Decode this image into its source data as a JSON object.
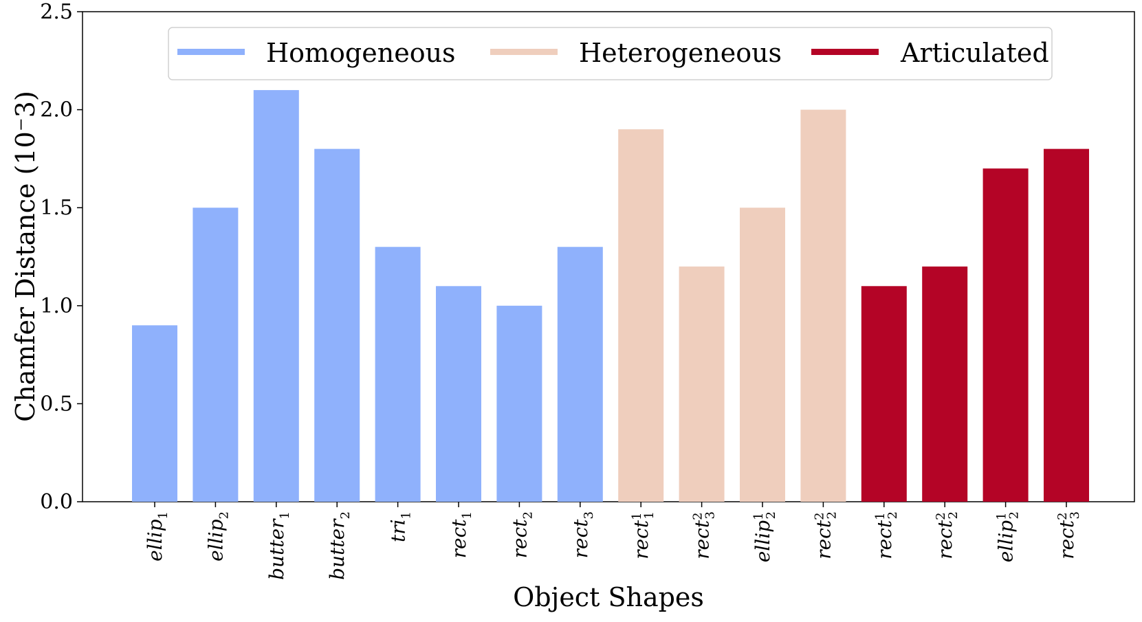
{
  "chart_data": {
    "type": "bar",
    "xlabel": "Object Shapes",
    "ylabel": "Chamfer Distance (10⁻3)",
    "ylim": [
      0,
      2.5
    ],
    "yticks": [
      "0.0",
      "0.5",
      "1.0",
      "1.5",
      "2.0",
      "2.5"
    ],
    "grid": false,
    "legend_position": "top-center",
    "legend": [
      {
        "name": "Homogeneous",
        "color": "#8fb1fc"
      },
      {
        "name": "Heterogeneous",
        "color": "#efcebd"
      },
      {
        "name": "Articulated",
        "color": "#b40426"
      }
    ],
    "categories": [
      {
        "base": "ellip",
        "sub": "1",
        "sup": ""
      },
      {
        "base": "ellip",
        "sub": "2",
        "sup": ""
      },
      {
        "base": "butter",
        "sub": "1",
        "sup": ""
      },
      {
        "base": "butter",
        "sub": "2",
        "sup": ""
      },
      {
        "base": "tri",
        "sub": "1",
        "sup": ""
      },
      {
        "base": "rect",
        "sub": "1",
        "sup": ""
      },
      {
        "base": "rect",
        "sub": "2",
        "sup": ""
      },
      {
        "base": "rect",
        "sub": "3",
        "sup": ""
      },
      {
        "base": "rect",
        "sub": "1",
        "sup": "1"
      },
      {
        "base": "rect",
        "sub": "3",
        "sup": "2"
      },
      {
        "base": "ellip",
        "sub": "2",
        "sup": "1"
      },
      {
        "base": "rect",
        "sub": "2",
        "sup": "2"
      },
      {
        "base": "rect",
        "sub": "2",
        "sup": "1"
      },
      {
        "base": "rect",
        "sub": "2",
        "sup": "2"
      },
      {
        "base": "ellip",
        "sub": "2",
        "sup": "1"
      },
      {
        "base": "rect",
        "sub": "3",
        "sup": "2"
      }
    ],
    "values": [
      0.9,
      1.5,
      2.1,
      1.8,
      1.3,
      1.1,
      1.0,
      1.3,
      1.9,
      1.2,
      1.5,
      2.0,
      1.1,
      1.2,
      1.7,
      1.8
    ],
    "groups": [
      0,
      0,
      0,
      0,
      0,
      0,
      0,
      0,
      1,
      1,
      1,
      1,
      2,
      2,
      2,
      2
    ]
  }
}
